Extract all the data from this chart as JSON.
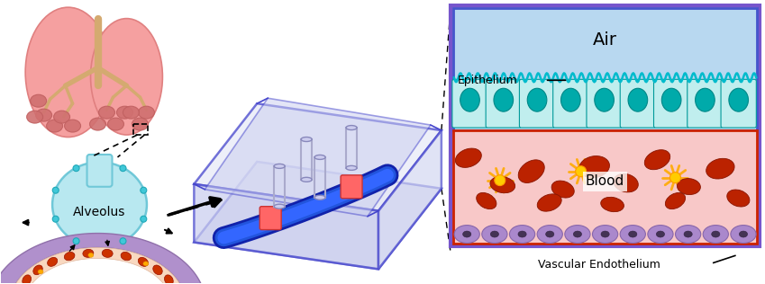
{
  "fig_width": 8.49,
  "fig_height": 3.16,
  "dpi": 100,
  "bg_color": "#ffffff",
  "labels": {
    "air": "Air",
    "epithelium": "Epithelium",
    "blood": "Blood",
    "vascular_endothelium": "Vascular Endothelium",
    "alveolus": "Alveolus"
  }
}
